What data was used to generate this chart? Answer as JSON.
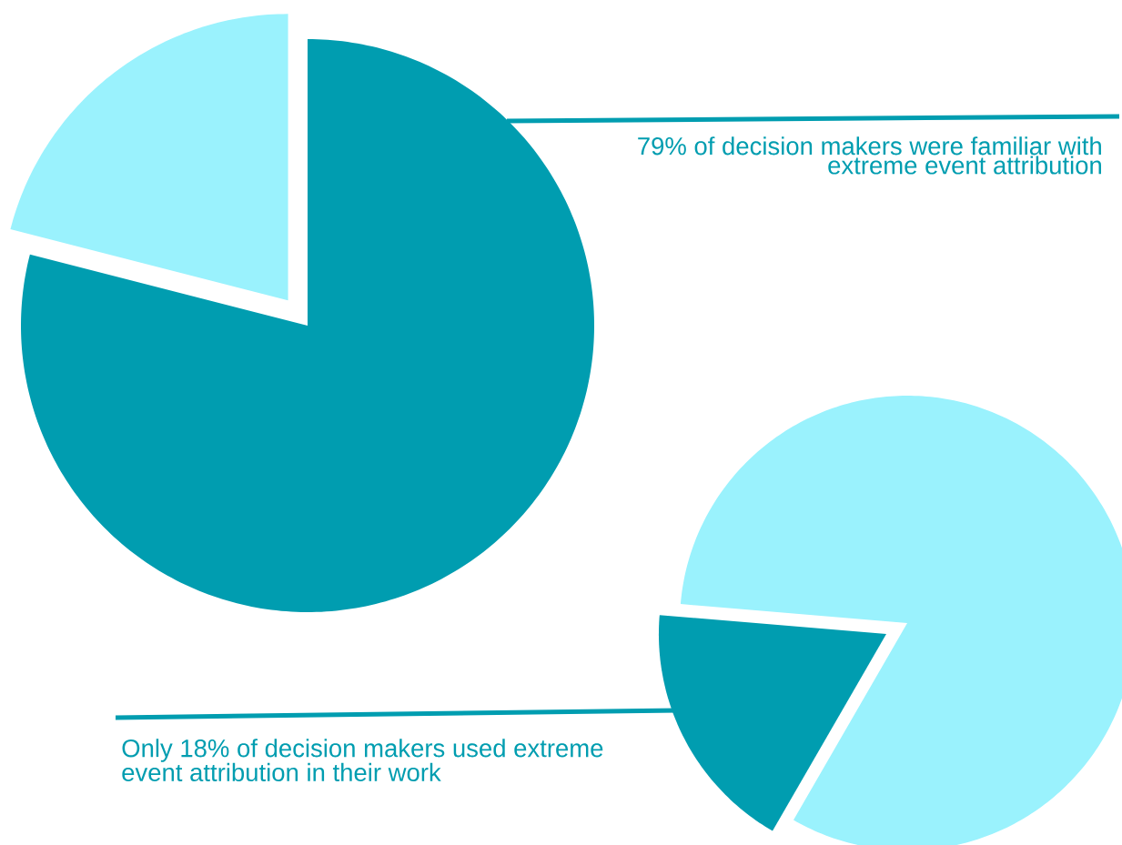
{
  "chart_data": [
    {
      "type": "pie",
      "categories": [
        null,
        null
      ],
      "values": [
        79,
        21
      ],
      "colors": [
        "#009db0",
        "#9af2fd"
      ],
      "annotations": [
        "79% of decision makers were familiar with extreme event attribution"
      ]
    },
    {
      "type": "pie",
      "categories": [
        null,
        null
      ],
      "values": [
        18,
        82
      ],
      "colors": [
        "#009db0",
        "#9af2fd"
      ],
      "annotations": [
        "Only 18% of decision makers used extreme event attribution in their work"
      ]
    }
  ]
}
